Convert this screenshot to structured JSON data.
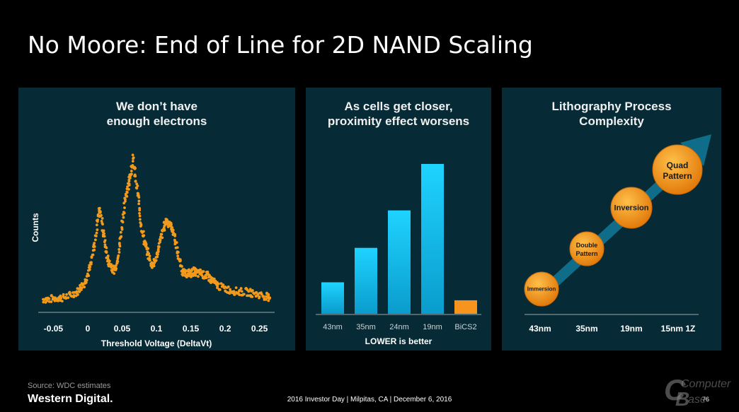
{
  "slide": {
    "title": "No Moore: End of Line for 2D NAND Scaling",
    "source": "Source: WDC estimates",
    "brand": "Western Digital.",
    "event": "2016 Investor Day | Milpitas, CA | December 6, 2016",
    "page_number": "76",
    "watermark": {
      "line1": "Computer",
      "line2": "Base"
    }
  },
  "colors": {
    "panel_bg": "#062a36",
    "dot": "#f29a1c",
    "bar_blue": "#12c4ef",
    "bar_orange": "#f7941d",
    "arrow": "#0f6d8a",
    "circle": "#f08a12"
  },
  "panels": {
    "electrons": {
      "title": "We don’t have\nenough electrons"
    },
    "proximity": {
      "title": "As cells get closer,\nproximity effect worsens"
    },
    "litho": {
      "title": "Lithography Process\nComplexity"
    }
  },
  "chart_data": [
    {
      "type": "scatter",
      "title": "We don’t have enough electrons",
      "xlabel": "Threshold Voltage (DeltaVt)",
      "ylabel": "Counts",
      "xlim": [
        -0.07,
        0.27
      ],
      "ylim": [
        0,
        100
      ],
      "grid": false,
      "x_ticks": [
        "-0.05",
        "0",
        "0.05",
        "0.1",
        "0.15",
        "0.2",
        "0.25"
      ],
      "x_tick_values": [
        -0.05,
        0,
        0.05,
        0.1,
        0.15,
        0.2,
        0.25
      ],
      "series": [
        {
          "x": [
            -0.065,
            -0.055,
            -0.045,
            -0.035,
            -0.025,
            -0.015,
            -0.01,
            -0.005,
            0,
            0.005,
            0.01,
            0.015,
            0.018,
            0.022,
            0.026,
            0.03,
            0.034,
            0.038,
            0.042,
            0.046,
            0.05,
            0.054,
            0.058,
            0.062,
            0.066,
            0.07,
            0.074,
            0.078,
            0.082,
            0.086,
            0.09,
            0.094,
            0.098,
            0.102,
            0.106,
            0.11,
            0.114,
            0.118,
            0.122,
            0.126,
            0.13,
            0.134,
            0.138,
            0.142,
            0.146,
            0.15,
            0.155,
            0.16,
            0.165,
            0.17,
            0.175,
            0.18,
            0.185,
            0.19,
            0.2,
            0.21,
            0.22,
            0.23,
            0.24,
            0.25,
            0.26,
            0.265
          ],
          "y": [
            5,
            5,
            6,
            6,
            8,
            10,
            13,
            16,
            22,
            30,
            42,
            60,
            66,
            52,
            40,
            30,
            28,
            24,
            28,
            40,
            55,
            70,
            80,
            88,
            100,
            85,
            72,
            55,
            45,
            38,
            32,
            28,
            30,
            38,
            45,
            52,
            58,
            56,
            54,
            48,
            38,
            30,
            24,
            22,
            23,
            22,
            24,
            22,
            23,
            21,
            21,
            18,
            16,
            14,
            12,
            11,
            10,
            10,
            9,
            8,
            7,
            6
          ]
        }
      ]
    },
    {
      "type": "bar",
      "title": "As cells get closer, proximity effect worsens",
      "xlabel": "LOWER is better",
      "ylabel": "",
      "categories": [
        "43nm",
        "35nm",
        "24nm",
        "19nm",
        "BiCS2"
      ],
      "values": [
        21,
        44,
        69,
        100,
        9
      ],
      "ylim": [
        0,
        100
      ]
    },
    {
      "type": "diagram",
      "title": "Lithography Process Complexity",
      "x_labels": [
        "43nm",
        "35nm",
        "19nm",
        "15nm 1Z"
      ],
      "steps": [
        {
          "line1": "Immersion",
          "line2": ""
        },
        {
          "line1": "Double",
          "line2": "Pattern"
        },
        {
          "line1": "Inversion",
          "line2": ""
        },
        {
          "line1": "Quad",
          "line2": "Pattern"
        }
      ]
    }
  ]
}
